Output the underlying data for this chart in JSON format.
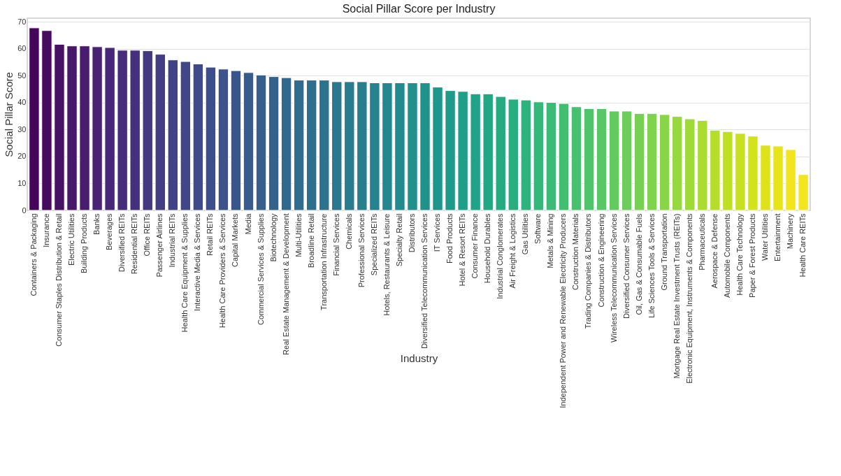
{
  "chart_data": {
    "type": "bar",
    "title": "Social Pillar Score per Industry",
    "xlabel": "Industry",
    "ylabel": "Social Pillar Score",
    "categories": [
      "Containers & Packaging",
      "Insurance",
      "Consumer Staples Distribution & Retail",
      "Electric Utilities",
      "Building Products",
      "Banks",
      "Beverages",
      "Diversified REITs",
      "Residential REITs",
      "Office REITs",
      "Passenger Airlines",
      "Industrial REITs",
      "Health Care Equipment & Supplies",
      "Interactive Media & Services",
      "Retail REITs",
      "Health Care Providers & Services",
      "Capital Markets",
      "Media",
      "Commercial Services & Supplies",
      "Biotechnology",
      "Real Estate Management & Development",
      "Multi-Utilities",
      "Broadline Retail",
      "Transportation Infrastructure",
      "Financial Services",
      "Chemicals",
      "Professional Services",
      "Specialized REITs",
      "Hotels, Restaurants & Leisure",
      "Specialty Retail",
      "Distributors",
      "Diversified Telecommunication Services",
      "IT Services",
      "Food Products",
      "Hotel & Resort REITs",
      "Consumer Finance",
      "Household Durables",
      "Industrial Conglomerates",
      "Air Freight & Logistics",
      "Gas Utilities",
      "Software",
      "Metals & Mining",
      "Independent Power and Renewable Electricity Producers",
      "Construction Materials",
      "Trading Companies & Distributors",
      "Construction & Engineering",
      "Wireless Telecommunication Services",
      "Diversified Consumer Services",
      "Oil, Gas & Consumable Fuels",
      "Life Sciences Tools & Services",
      "Ground Transportation",
      "Mortgage Real Estate Investment Trusts (REITs)",
      "Electronic Equipment, Instruments & Components",
      "Pharmaceuticals",
      "Aerospace & Defense",
      "Automobile Components",
      "Health Care Technology",
      "Paper & Forest Products",
      "Water Utilities",
      "Entertainment",
      "Machinery",
      "Health Care REITs"
    ],
    "values": [
      67.8,
      66.8,
      61.7,
      61.1,
      61.1,
      60.8,
      60.5,
      59.5,
      59.5,
      59.3,
      58.0,
      55.9,
      55.3,
      54.4,
      53.2,
      52.5,
      51.9,
      51.2,
      50.3,
      49.7,
      49.3,
      48.4,
      48.4,
      48.4,
      47.8,
      47.8,
      47.8,
      47.4,
      47.4,
      47.4,
      47.4,
      47.4,
      45.8,
      44.5,
      44.2,
      43.3,
      43.3,
      42.3,
      41.3,
      41.0,
      40.3,
      40.1,
      39.7,
      38.5,
      37.8,
      37.8,
      36.9,
      36.9,
      36.0,
      36.0,
      35.6,
      34.9,
      34.0,
      33.4,
      29.8,
      29.3,
      28.6,
      27.6,
      24.2,
      23.9,
      22.6,
      13.3
    ],
    "colors": [
      "#45065a",
      "#460b5e",
      "#471164",
      "#47176a",
      "#481d6f",
      "#482374",
      "#472878",
      "#462c7b",
      "#45307e",
      "#443882",
      "#433d84",
      "#424286",
      "#404688",
      "#3e4a89",
      "#3c4f8a",
      "#3b528b",
      "#39568c",
      "#375b8d",
      "#355f8d",
      "#33638d",
      "#31688e",
      "#2f6c8e",
      "#2e6f8e",
      "#2c738e",
      "#2a778e",
      "#297b8e",
      "#277f8e",
      "#26828e",
      "#24868e",
      "#238a8d",
      "#21918c",
      "#20928c",
      "#1f968b",
      "#1f9a8a",
      "#1f9e89",
      "#20a386",
      "#22a785",
      "#25ab82",
      "#29af7f",
      "#2eb37c",
      "#35b779",
      "#3bbb75",
      "#42be71",
      "#48c16e",
      "#50c46a",
      "#58c765",
      "#62cb5f",
      "#6ccd5a",
      "#75d054",
      "#7fd34e",
      "#89d548",
      "#95d840",
      "#a0da39",
      "#abdc32",
      "#b5de2b",
      "#bfdf25",
      "#c8e020",
      "#d2e21b",
      "#dde318",
      "#e7e419",
      "#f1e51d",
      "#f3e61f"
    ],
    "ylim": [
      0,
      71.4
    ],
    "yticks": [
      0,
      10,
      20,
      30,
      40,
      50,
      60,
      70
    ],
    "grid": "y"
  }
}
